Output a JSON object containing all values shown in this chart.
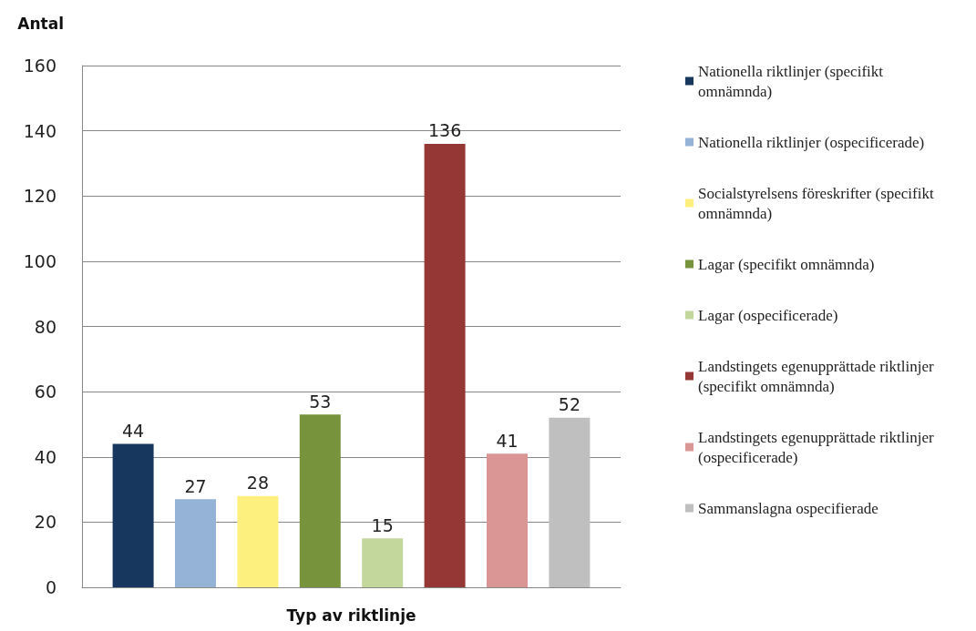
{
  "chart_data": {
    "type": "bar",
    "ylabel": "Antal",
    "xlabel": "Typ av riktlinje",
    "categories": [
      null
    ],
    "series": [
      {
        "name": "Nationella riktlinjer (specifikt omnämnda)",
        "color": "#17375e",
        "values": [
          44
        ]
      },
      {
        "name": "Nationella riktlinjer (ospecificerade)",
        "color": "#95b3d7",
        "values": [
          27
        ]
      },
      {
        "name": "Socialstyrelsens föreskrifter (specifikt omnämnda)",
        "color": "#fdf07e",
        "values": [
          28
        ]
      },
      {
        "name": "Lagar (specifikt omnämnda)",
        "color": "#77933c",
        "values": [
          53
        ]
      },
      {
        "name": "Lagar (ospecificerade)",
        "color": "#c3d69b",
        "values": [
          15
        ]
      },
      {
        "name": "Landstingets egenupprättade riktlinjer (specifikt omnämnda)",
        "color": "#953735",
        "values": [
          136
        ]
      },
      {
        "name": "Landstingets egenupprättade riktlinjer (ospecificerade)",
        "color": "#d99694",
        "values": [
          41
        ]
      },
      {
        "name": "Sammanslagna ospecifierade",
        "color": "#bfbfbf",
        "values": [
          52
        ]
      }
    ],
    "ylim": [
      0,
      160
    ],
    "yticks": [
      0,
      20,
      40,
      60,
      80,
      100,
      120,
      140,
      160
    ],
    "grid": "y",
    "legend": "right",
    "data_labels": true
  }
}
